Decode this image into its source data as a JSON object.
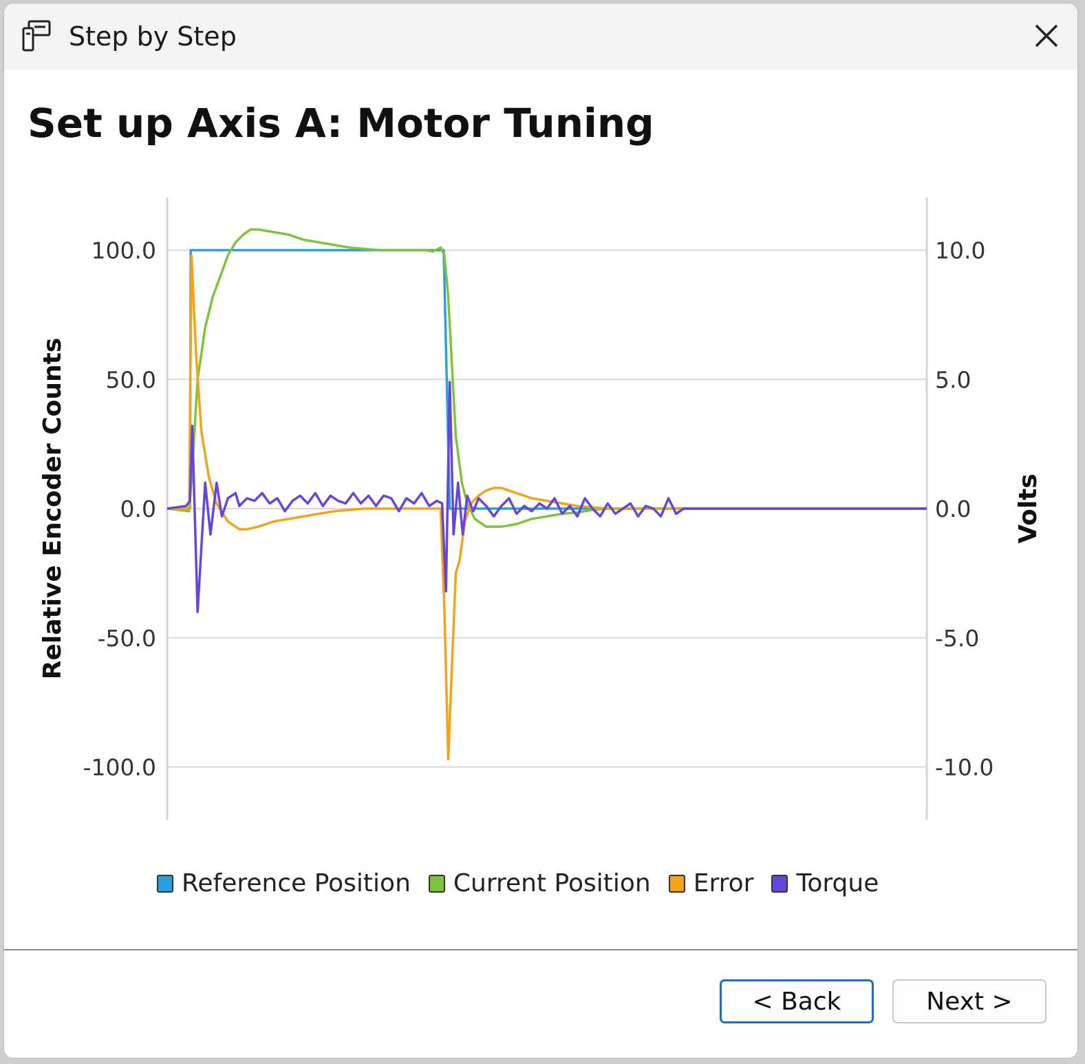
{
  "window": {
    "title": "Step by Step"
  },
  "page": {
    "heading": "Set up Axis A: Motor Tuning"
  },
  "chart_data": {
    "type": "line",
    "title": "",
    "xlabel": "",
    "ylabel": "Relative Encoder Counts",
    "y2label": "Volts",
    "ylim": [
      -120,
      120
    ],
    "y2lim": [
      -12,
      12
    ],
    "yticks": [
      "100.0",
      "50.0",
      "0.0",
      "-50.0",
      "-100.0"
    ],
    "y2ticks": [
      "10.0",
      "5.0",
      "0.0",
      "-5.0",
      "-10.0"
    ],
    "grid": true,
    "legend": "bottom",
    "xlim": [
      0,
      100
    ],
    "series": [
      {
        "name": "Reference Position",
        "color": "#2aa1dc",
        "axis": "left",
        "x": [
          0,
          3,
          3.1,
          36.4,
          37.2,
          100
        ],
        "y": [
          0,
          0,
          100,
          100,
          0,
          0
        ]
      },
      {
        "name": "Current Position",
        "color": "#7fc33c",
        "axis": "left",
        "x": [
          0,
          2.9,
          3.4,
          4,
          5,
          6,
          7,
          8,
          9,
          10,
          11,
          12,
          14,
          16,
          18,
          20,
          22,
          24,
          26,
          28,
          30,
          32,
          34,
          35,
          36,
          36.5,
          37,
          37.5,
          38,
          38.8,
          39.5,
          40.5,
          42,
          44,
          46,
          48,
          50,
          52,
          54,
          56,
          58,
          60,
          62,
          64,
          66,
          68,
          100
        ],
        "y": [
          0,
          -1,
          20,
          50,
          70,
          82,
          90,
          98,
          103,
          106,
          108,
          108,
          107,
          106,
          104,
          103,
          102,
          101,
          100.5,
          100,
          100,
          100,
          100,
          99.5,
          101,
          98,
          82,
          55,
          28,
          10,
          2,
          -4,
          -7,
          -7,
          -6,
          -4,
          -3,
          -2,
          -1.5,
          -0.5,
          0,
          0,
          0,
          0,
          0,
          0,
          0
        ]
      },
      {
        "name": "Error",
        "color": "#f4a21a",
        "axis": "left",
        "x": [
          0,
          2.9,
          3.2,
          3.8,
          4.5,
          5.5,
          6.5,
          8,
          9.5,
          10.5,
          12,
          14,
          16,
          18,
          20,
          22,
          24,
          26,
          28,
          30,
          32,
          34,
          36,
          36.5,
          37,
          37.5,
          38,
          38.5,
          39.2,
          40,
          41,
          42,
          43,
          44,
          45,
          46,
          48,
          50,
          52,
          54,
          56,
          58,
          60,
          62,
          64,
          66,
          68,
          100
        ],
        "y": [
          0,
          0,
          98,
          60,
          30,
          12,
          2,
          -5,
          -8,
          -8,
          -7,
          -5,
          -4,
          -3,
          -2,
          -1,
          -0.5,
          0,
          0,
          0,
          0,
          0,
          0,
          -40,
          -97,
          -60,
          -25,
          -20,
          -5,
          2,
          5,
          7,
          8,
          8,
          7,
          6,
          4,
          3,
          2,
          1,
          0.5,
          0,
          0,
          0,
          0,
          0,
          0,
          0
        ]
      },
      {
        "name": "Torque",
        "color": "#6646d8",
        "axis": "right",
        "x": [
          0,
          2.5,
          3,
          3.3,
          4,
          5,
          5.7,
          6.5,
          7.2,
          8,
          9,
          9.5,
          10.5,
          11.5,
          12.5,
          13.5,
          14.5,
          15.5,
          16.5,
          17.5,
          18.5,
          19.5,
          20.5,
          21.5,
          22.5,
          23.5,
          24.5,
          25.5,
          26.5,
          27.5,
          28.5,
          29.5,
          30.5,
          31.5,
          32.5,
          33.5,
          34.5,
          35.5,
          36.2,
          36.7,
          37.2,
          37.7,
          38.3,
          38.9,
          39.5,
          40.3,
          41,
          42,
          43,
          44,
          45,
          46,
          47,
          48,
          49,
          50,
          51,
          52,
          53,
          54,
          55,
          56,
          57,
          58,
          59,
          60,
          61,
          62,
          63,
          64,
          65,
          66,
          67,
          68,
          68.5,
          69,
          100
        ],
        "y": [
          0,
          0.1,
          0.3,
          3.2,
          -4,
          1,
          -1,
          1,
          -0.3,
          0.4,
          0.6,
          0.1,
          0.4,
          0.3,
          0.6,
          0.2,
          0.4,
          -0.1,
          0.3,
          0.5,
          0.2,
          0.6,
          0.1,
          0.5,
          0.3,
          0.2,
          0.6,
          0.2,
          0.5,
          0.1,
          0.5,
          0.4,
          -0.1,
          0.4,
          0.2,
          0.6,
          0.1,
          0.3,
          0.2,
          -3.2,
          4.9,
          -1,
          1,
          -1,
          0.5,
          -0.1,
          0.4,
          0.1,
          -0.3,
          0.1,
          0.4,
          -0.2,
          0.1,
          -0.1,
          0.2,
          0,
          0.4,
          -0.2,
          0.1,
          -0.3,
          0.4,
          0,
          -0.3,
          0.2,
          -0.2,
          0,
          0.2,
          -0.3,
          0.1,
          0,
          -0.3,
          0.4,
          -0.2,
          0,
          0,
          0,
          0
        ]
      }
    ]
  },
  "footer": {
    "back_label": "< Back",
    "next_label": "Next >"
  }
}
